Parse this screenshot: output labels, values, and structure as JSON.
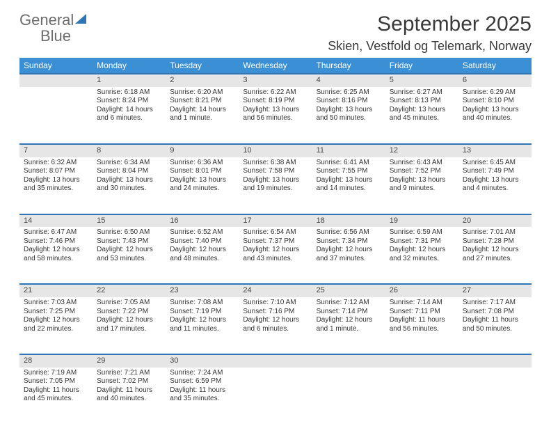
{
  "brand": {
    "word1": "General",
    "word2": "Blue"
  },
  "header": {
    "month_title": "September 2025",
    "location": "Skien, Vestfold og Telemark, Norway"
  },
  "colors": {
    "header_bg": "#3b8fd4",
    "header_text": "#ffffff",
    "daynum_bg": "#e6e6e6",
    "row_divider": "#2f75b5",
    "body_text": "#333333",
    "brand_gray": "#6c6c6c",
    "brand_blue": "#2f75b5",
    "page_bg": "#ffffff"
  },
  "typography": {
    "month_title_fontsize": 30,
    "location_fontsize": 18,
    "weekday_fontsize": 12,
    "daynum_fontsize": 11,
    "cell_fontsize": 10
  },
  "weekdays": [
    "Sunday",
    "Monday",
    "Tuesday",
    "Wednesday",
    "Thursday",
    "Friday",
    "Saturday"
  ],
  "weeks": [
    [
      null,
      {
        "n": "1",
        "sunrise": "Sunrise: 6:18 AM",
        "sunset": "Sunset: 8:24 PM",
        "daylight": "Daylight: 14 hours and 6 minutes."
      },
      {
        "n": "2",
        "sunrise": "Sunrise: 6:20 AM",
        "sunset": "Sunset: 8:21 PM",
        "daylight": "Daylight: 14 hours and 1 minute."
      },
      {
        "n": "3",
        "sunrise": "Sunrise: 6:22 AM",
        "sunset": "Sunset: 8:19 PM",
        "daylight": "Daylight: 13 hours and 56 minutes."
      },
      {
        "n": "4",
        "sunrise": "Sunrise: 6:25 AM",
        "sunset": "Sunset: 8:16 PM",
        "daylight": "Daylight: 13 hours and 50 minutes."
      },
      {
        "n": "5",
        "sunrise": "Sunrise: 6:27 AM",
        "sunset": "Sunset: 8:13 PM",
        "daylight": "Daylight: 13 hours and 45 minutes."
      },
      {
        "n": "6",
        "sunrise": "Sunrise: 6:29 AM",
        "sunset": "Sunset: 8:10 PM",
        "daylight": "Daylight: 13 hours and 40 minutes."
      }
    ],
    [
      {
        "n": "7",
        "sunrise": "Sunrise: 6:32 AM",
        "sunset": "Sunset: 8:07 PM",
        "daylight": "Daylight: 13 hours and 35 minutes."
      },
      {
        "n": "8",
        "sunrise": "Sunrise: 6:34 AM",
        "sunset": "Sunset: 8:04 PM",
        "daylight": "Daylight: 13 hours and 30 minutes."
      },
      {
        "n": "9",
        "sunrise": "Sunrise: 6:36 AM",
        "sunset": "Sunset: 8:01 PM",
        "daylight": "Daylight: 13 hours and 24 minutes."
      },
      {
        "n": "10",
        "sunrise": "Sunrise: 6:38 AM",
        "sunset": "Sunset: 7:58 PM",
        "daylight": "Daylight: 13 hours and 19 minutes."
      },
      {
        "n": "11",
        "sunrise": "Sunrise: 6:41 AM",
        "sunset": "Sunset: 7:55 PM",
        "daylight": "Daylight: 13 hours and 14 minutes."
      },
      {
        "n": "12",
        "sunrise": "Sunrise: 6:43 AM",
        "sunset": "Sunset: 7:52 PM",
        "daylight": "Daylight: 13 hours and 9 minutes."
      },
      {
        "n": "13",
        "sunrise": "Sunrise: 6:45 AM",
        "sunset": "Sunset: 7:49 PM",
        "daylight": "Daylight: 13 hours and 4 minutes."
      }
    ],
    [
      {
        "n": "14",
        "sunrise": "Sunrise: 6:47 AM",
        "sunset": "Sunset: 7:46 PM",
        "daylight": "Daylight: 12 hours and 58 minutes."
      },
      {
        "n": "15",
        "sunrise": "Sunrise: 6:50 AM",
        "sunset": "Sunset: 7:43 PM",
        "daylight": "Daylight: 12 hours and 53 minutes."
      },
      {
        "n": "16",
        "sunrise": "Sunrise: 6:52 AM",
        "sunset": "Sunset: 7:40 PM",
        "daylight": "Daylight: 12 hours and 48 minutes."
      },
      {
        "n": "17",
        "sunrise": "Sunrise: 6:54 AM",
        "sunset": "Sunset: 7:37 PM",
        "daylight": "Daylight: 12 hours and 43 minutes."
      },
      {
        "n": "18",
        "sunrise": "Sunrise: 6:56 AM",
        "sunset": "Sunset: 7:34 PM",
        "daylight": "Daylight: 12 hours and 37 minutes."
      },
      {
        "n": "19",
        "sunrise": "Sunrise: 6:59 AM",
        "sunset": "Sunset: 7:31 PM",
        "daylight": "Daylight: 12 hours and 32 minutes."
      },
      {
        "n": "20",
        "sunrise": "Sunrise: 7:01 AM",
        "sunset": "Sunset: 7:28 PM",
        "daylight": "Daylight: 12 hours and 27 minutes."
      }
    ],
    [
      {
        "n": "21",
        "sunrise": "Sunrise: 7:03 AM",
        "sunset": "Sunset: 7:25 PM",
        "daylight": "Daylight: 12 hours and 22 minutes."
      },
      {
        "n": "22",
        "sunrise": "Sunrise: 7:05 AM",
        "sunset": "Sunset: 7:22 PM",
        "daylight": "Daylight: 12 hours and 17 minutes."
      },
      {
        "n": "23",
        "sunrise": "Sunrise: 7:08 AM",
        "sunset": "Sunset: 7:19 PM",
        "daylight": "Daylight: 12 hours and 11 minutes."
      },
      {
        "n": "24",
        "sunrise": "Sunrise: 7:10 AM",
        "sunset": "Sunset: 7:16 PM",
        "daylight": "Daylight: 12 hours and 6 minutes."
      },
      {
        "n": "25",
        "sunrise": "Sunrise: 7:12 AM",
        "sunset": "Sunset: 7:14 PM",
        "daylight": "Daylight: 12 hours and 1 minute."
      },
      {
        "n": "26",
        "sunrise": "Sunrise: 7:14 AM",
        "sunset": "Sunset: 7:11 PM",
        "daylight": "Daylight: 11 hours and 56 minutes."
      },
      {
        "n": "27",
        "sunrise": "Sunrise: 7:17 AM",
        "sunset": "Sunset: 7:08 PM",
        "daylight": "Daylight: 11 hours and 50 minutes."
      }
    ],
    [
      {
        "n": "28",
        "sunrise": "Sunrise: 7:19 AM",
        "sunset": "Sunset: 7:05 PM",
        "daylight": "Daylight: 11 hours and 45 minutes."
      },
      {
        "n": "29",
        "sunrise": "Sunrise: 7:21 AM",
        "sunset": "Sunset: 7:02 PM",
        "daylight": "Daylight: 11 hours and 40 minutes."
      },
      {
        "n": "30",
        "sunrise": "Sunrise: 7:24 AM",
        "sunset": "Sunset: 6:59 PM",
        "daylight": "Daylight: 11 hours and 35 minutes."
      },
      null,
      null,
      null,
      null
    ]
  ]
}
